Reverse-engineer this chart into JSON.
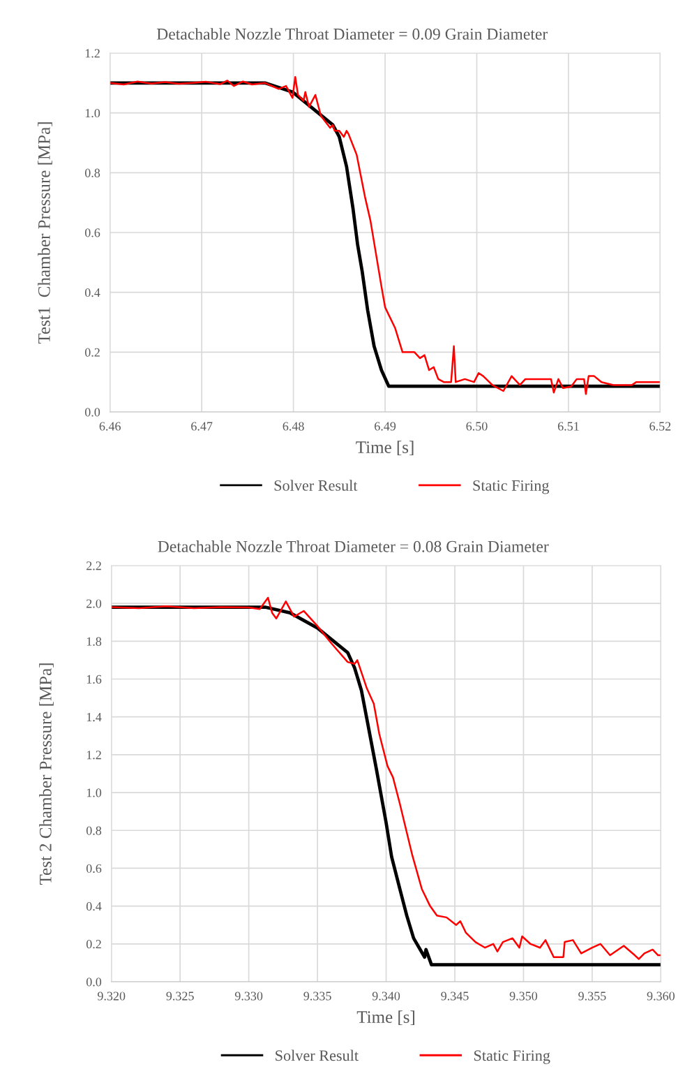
{
  "chart_data": [
    {
      "type": "line",
      "title": "Detachable Nozzle Throat Diameter = 0.09 Grain Diameter",
      "xlabel": "Time [s]",
      "ylabel": "Test1  Chamber Pressure [MPa]",
      "xlim": [
        6.46,
        6.52
      ],
      "xticks": [
        {
          "value": 6.46,
          "label": "6.46"
        },
        {
          "value": 6.47,
          "label": "6.47"
        },
        {
          "value": 6.48,
          "label": "6.48"
        },
        {
          "value": 6.49,
          "label": "6.49"
        },
        {
          "value": 6.5,
          "label": "6.50"
        },
        {
          "value": 6.51,
          "label": "6.51"
        },
        {
          "value": 6.52,
          "label": "6.52"
        }
      ],
      "ylim": [
        0,
        1.2
      ],
      "yticks": [
        {
          "value": 0,
          "label": "0.0"
        },
        0.2,
        0.4,
        0.6,
        0.8,
        {
          "value": 1,
          "label": "1.0"
        },
        1.2
      ],
      "grid": true,
      "legend": "bottom",
      "series": [
        {
          "name": "Solver Result",
          "color": "#000000",
          "x": [
            6.46,
            6.47,
            6.4769,
            6.4799,
            6.4827,
            6.4843,
            6.485,
            6.4858,
            6.4865,
            6.487,
            6.4875,
            6.4881,
            6.4888,
            6.4896,
            6.4904,
            6.52
          ],
          "values": [
            1.1,
            1.1,
            1.1,
            1.07,
            1.0,
            0.96,
            0.92,
            0.82,
            0.68,
            0.56,
            0.47,
            0.34,
            0.22,
            0.14,
            0.086,
            0.086
          ]
        },
        {
          "name": "Static Firing",
          "color": "#ff0000",
          "x": [
            6.46,
            6.4615,
            6.463,
            6.4645,
            6.466,
            6.4675,
            6.469,
            6.4705,
            6.472,
            6.4728,
            6.4735,
            6.4745,
            6.4755,
            6.4769,
            6.4784,
            6.4792,
            6.4799,
            6.4802,
            6.4805,
            6.4811,
            6.4813,
            6.4817,
            6.4824,
            6.483,
            6.484,
            6.4843,
            6.4845,
            6.485,
            6.4855,
            6.4858,
            6.486,
            6.4869,
            6.4878,
            6.4884,
            6.4896,
            6.49,
            6.4911,
            6.4919,
            6.4932,
            6.4938,
            6.4943,
            6.4948,
            6.4953,
            6.4958,
            6.4964,
            6.4972,
            6.4975,
            6.4977,
            6.4987,
            6.4997,
            6.5002,
            6.5007,
            6.5017,
            6.5029,
            6.5038,
            6.5047,
            6.5053,
            6.5072,
            6.5081,
            6.5084,
            6.5089,
            6.5094,
            6.5103,
            6.5109,
            6.5117,
            6.5119,
            6.5122,
            6.5128,
            6.5136,
            6.5149,
            6.5156,
            6.5169,
            6.5174,
            6.5186,
            6.5194,
            6.52
          ],
          "values": [
            1.1,
            1.095,
            1.105,
            1.098,
            1.103,
            1.097,
            1.1,
            1.104,
            1.096,
            1.108,
            1.09,
            1.105,
            1.095,
            1.1,
            1.08,
            1.09,
            1.05,
            1.12,
            1.06,
            1.04,
            1.07,
            1.02,
            1.06,
            0.99,
            0.95,
            0.96,
            0.94,
            0.94,
            0.92,
            0.94,
            0.93,
            0.86,
            0.72,
            0.64,
            0.42,
            0.35,
            0.28,
            0.2,
            0.2,
            0.18,
            0.19,
            0.14,
            0.15,
            0.11,
            0.1,
            0.1,
            0.22,
            0.1,
            0.11,
            0.1,
            0.13,
            0.12,
            0.09,
            0.07,
            0.12,
            0.09,
            0.11,
            0.11,
            0.11,
            0.065,
            0.11,
            0.08,
            0.085,
            0.11,
            0.11,
            0.06,
            0.12,
            0.12,
            0.1,
            0.09,
            0.09,
            0.09,
            0.1,
            0.1,
            0.1,
            0.1
          ]
        }
      ]
    },
    {
      "type": "line",
      "title": "Detachable Nozzle Throat Diameter = 0.08 Grain Diameter",
      "xlabel": "Time [s]",
      "ylabel": "Test 2 Chamber Pressure [MPa]",
      "xlim": [
        9.32,
        9.36
      ],
      "xticks": [
        {
          "value": 9.32,
          "label": "9.320"
        },
        {
          "value": 9.325,
          "label": "9.325"
        },
        {
          "value": 9.33,
          "label": "9.330"
        },
        {
          "value": 9.335,
          "label": "9.335"
        },
        {
          "value": 9.34,
          "label": "9.340"
        },
        {
          "value": 9.345,
          "label": "9.345"
        },
        {
          "value": 9.35,
          "label": "9.350"
        },
        {
          "value": 9.355,
          "label": "9.355"
        },
        {
          "value": 9.36,
          "label": "9.360"
        }
      ],
      "ylim": [
        0,
        2.2
      ],
      "yticks": [
        {
          "value": 0,
          "label": "0.0"
        },
        0.2,
        0.4,
        0.6,
        0.8,
        {
          "value": 1,
          "label": "1.0"
        },
        1.2,
        1.4,
        1.6,
        1.8,
        {
          "value": 2,
          "label": "2.0"
        },
        2.2
      ],
      "grid": true,
      "legend": "bottom",
      "series": [
        {
          "name": "Solver Result",
          "color": "#000000",
          "x": [
            9.32,
            9.3312,
            9.333,
            9.335,
            9.3372,
            9.3377,
            9.3382,
            9.3387,
            9.3393,
            9.34,
            9.3404,
            9.341,
            9.3415,
            9.342,
            9.3428,
            9.3429,
            9.3433,
            9.36
          ],
          "values": [
            1.98,
            1.98,
            1.95,
            1.87,
            1.74,
            1.66,
            1.54,
            1.35,
            1.12,
            0.84,
            0.66,
            0.49,
            0.35,
            0.23,
            0.13,
            0.17,
            0.09,
            0.09
          ]
        },
        {
          "name": "Static Firing",
          "color": "#ff0000",
          "x": [
            9.32,
            9.322,
            9.324,
            9.326,
            9.328,
            9.33,
            9.3308,
            9.3314,
            9.3317,
            9.332,
            9.3327,
            9.3333,
            9.334,
            9.335,
            9.336,
            9.3372,
            9.3377,
            9.3379,
            9.3386,
            9.3391,
            9.3395,
            9.3401,
            9.3405,
            9.341,
            9.3415,
            9.3419,
            9.3426,
            9.3432,
            9.3437,
            9.3444,
            9.3451,
            9.3454,
            9.3458,
            9.3465,
            9.3472,
            9.3478,
            9.3481,
            9.3485,
            9.3492,
            9.3497,
            9.3499,
            9.3505,
            9.3512,
            9.3516,
            9.3522,
            9.3529,
            9.353,
            9.3536,
            9.3542,
            9.355,
            9.3556,
            9.3563,
            9.3573,
            9.3581,
            9.3584,
            9.3588,
            9.3594,
            9.3598,
            9.36
          ],
          "values": [
            1.98,
            1.975,
            1.985,
            1.975,
            1.98,
            1.978,
            1.97,
            2.03,
            1.95,
            1.92,
            2.01,
            1.93,
            1.96,
            1.88,
            1.79,
            1.69,
            1.68,
            1.7,
            1.55,
            1.47,
            1.31,
            1.14,
            1.08,
            0.94,
            0.79,
            0.67,
            0.49,
            0.4,
            0.35,
            0.34,
            0.3,
            0.32,
            0.26,
            0.21,
            0.18,
            0.2,
            0.16,
            0.21,
            0.23,
            0.18,
            0.24,
            0.2,
            0.18,
            0.22,
            0.13,
            0.13,
            0.21,
            0.22,
            0.15,
            0.18,
            0.2,
            0.14,
            0.19,
            0.14,
            0.12,
            0.15,
            0.17,
            0.14,
            0.14
          ]
        }
      ]
    }
  ]
}
